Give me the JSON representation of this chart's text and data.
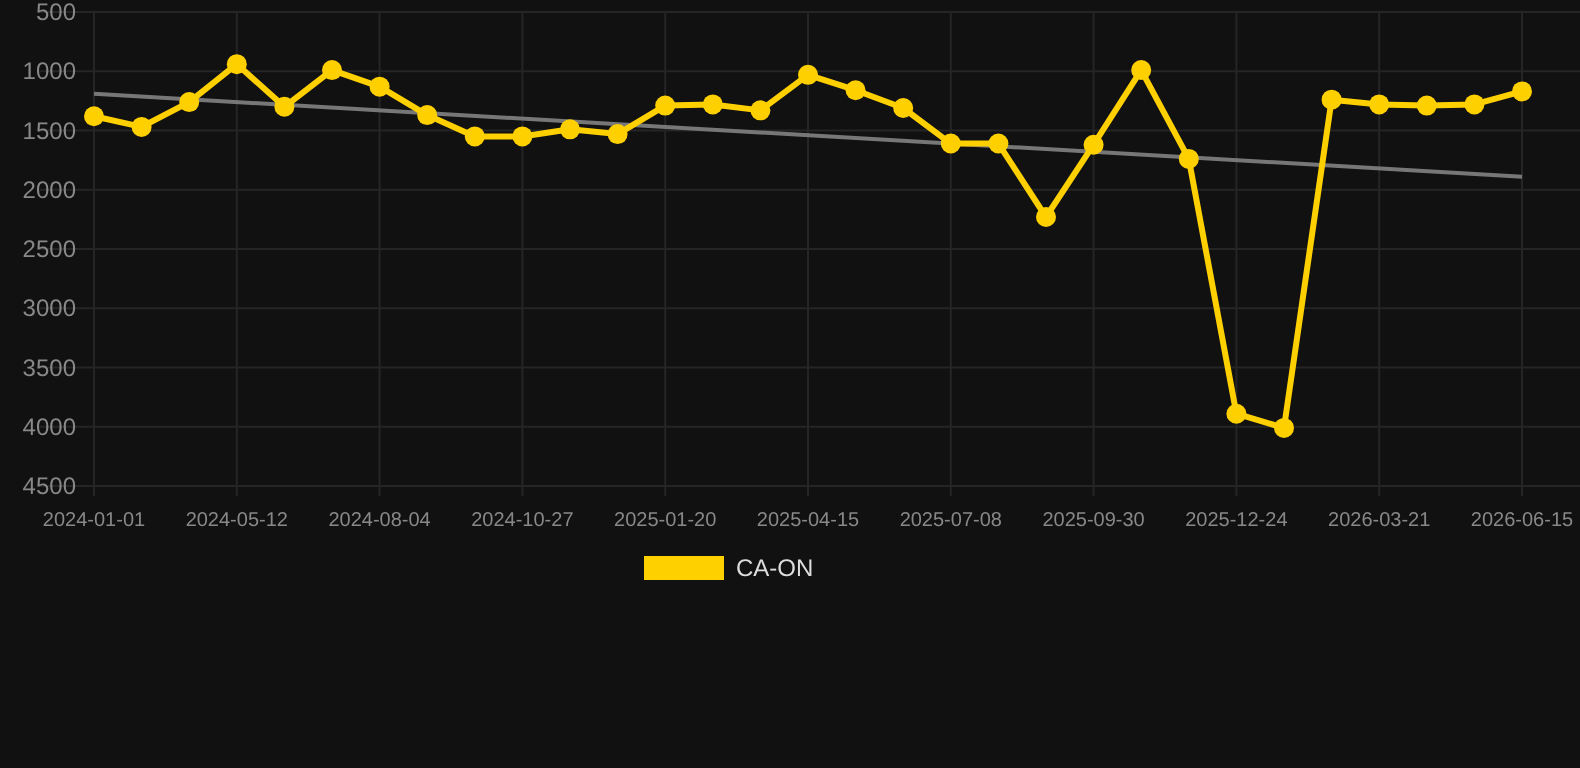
{
  "chart_data": {
    "type": "line",
    "categories": [
      "2024-01-01",
      null,
      null,
      "2024-05-12",
      null,
      null,
      "2024-08-04",
      null,
      null,
      "2024-10-27",
      null,
      null,
      "2025-01-20",
      null,
      null,
      "2025-04-15",
      null,
      null,
      "2025-07-08",
      null,
      null,
      "2025-09-30",
      null,
      null,
      "2025-12-24",
      null,
      null,
      "2026-03-21",
      null,
      null,
      "2026-06-15"
    ],
    "series": [
      {
        "name": "CA-ON",
        "color": "#ffd000",
        "marker": "circle",
        "values": [
          1380,
          1470,
          1260,
          940,
          1300,
          990,
          1130,
          1370,
          1550,
          1550,
          1490,
          1530,
          1290,
          1280,
          1330,
          1030,
          1160,
          1310,
          1610,
          1610,
          2230,
          1620,
          990,
          1740,
          3890,
          4010,
          1240,
          1280,
          1290,
          1280,
          1170
        ]
      },
      {
        "color": "#777777",
        "marker": "none",
        "values": [
          1190,
          null,
          null,
          null,
          null,
          null,
          null,
          null,
          null,
          null,
          null,
          null,
          null,
          null,
          null,
          null,
          null,
          null,
          null,
          null,
          null,
          null,
          null,
          null,
          null,
          null,
          null,
          null,
          null,
          null,
          1890
        ]
      }
    ],
    "ylim": [
      4500,
      500
    ],
    "yticks": [
      500,
      1000,
      1500,
      2000,
      2500,
      3000,
      3500,
      4000,
      4500
    ],
    "grid": true,
    "legend": "bottom"
  }
}
